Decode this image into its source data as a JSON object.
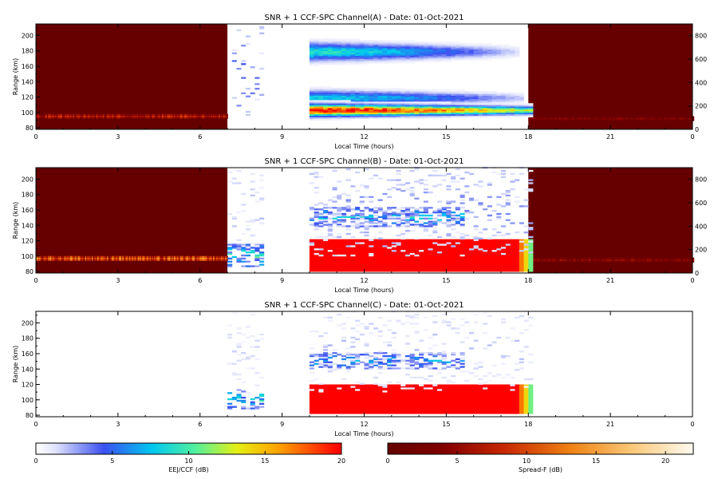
{
  "chart_data": [
    {
      "type": "heatmap",
      "title": "SNR + 1 CCF-SPC Channel(A) - Date: 01-Oct-2021",
      "xlabel": "Local Time (hours)",
      "ylabel": "Range (km)",
      "xlim": [
        0,
        24
      ],
      "ylim": [
        78,
        215
      ],
      "y2lim": [
        0,
        900
      ],
      "xticks": [
        "0",
        "3",
        "6",
        "9",
        "12",
        "15",
        "18",
        "21",
        "0"
      ],
      "yticks": [
        "80",
        "100",
        "120",
        "140",
        "160",
        "180",
        "200"
      ],
      "y2ticks": [
        "0",
        "200",
        "400",
        "600",
        "800"
      ],
      "night_panels": true,
      "night_features": [
        {
          "range_km": 95,
          "from_h": 0,
          "to_h": 7,
          "level_db": 8
        },
        {
          "range_km": 92,
          "from_h": 18,
          "to_h": 24,
          "level_db": 4
        }
      ],
      "features": [
        {
          "kind": "blob",
          "t0": 10,
          "t1": 17.5,
          "center_km": 178,
          "halfwidth_km": 12,
          "peak_db": 9,
          "tail_drop": 0.85
        },
        {
          "kind": "blob",
          "t0": 10,
          "t1": 17.8,
          "center_km": 118,
          "halfwidth_km": 10,
          "peak_db": 8,
          "tail_drop": 0.8
        },
        {
          "kind": "band",
          "t0": 10,
          "t1": 18,
          "center_km": 102,
          "halfwidth_km": 8,
          "peak_db": 20,
          "tail_drop": 0.4
        },
        {
          "kind": "speckle",
          "t0": 7,
          "t1": 8.2,
          "center_km": 150,
          "halfwidth_km": 60,
          "peak_db": 4,
          "density": 0.06
        }
      ]
    },
    {
      "type": "heatmap",
      "title": "SNR + 1 CCF-SPC Channel(B) - Date: 01-Oct-2021",
      "xlabel": "Local Time (hours)",
      "ylabel": "Range (km)",
      "xlim": [
        0,
        24
      ],
      "ylim": [
        78,
        215
      ],
      "y2lim": [
        0,
        900
      ],
      "xticks": [
        "0",
        "3",
        "6",
        "9",
        "12",
        "15",
        "18",
        "21",
        "0"
      ],
      "yticks": [
        "80",
        "100",
        "120",
        "140",
        "160",
        "180",
        "200"
      ],
      "y2ticks": [
        "0",
        "200",
        "400",
        "600",
        "800"
      ],
      "night_panels": true,
      "night_features": [
        {
          "range_km": 97,
          "from_h": 0,
          "to_h": 7,
          "level_db": 12
        },
        {
          "range_km": 95,
          "from_h": 18,
          "to_h": 24,
          "level_db": 5
        }
      ],
      "features": [
        {
          "kind": "solid",
          "t0": 10,
          "t1": 18,
          "from_km": 80,
          "to_km": 120,
          "level_db": 20
        },
        {
          "kind": "speckle",
          "t0": 10,
          "t1": 15.5,
          "center_km": 150,
          "halfwidth_km": 12,
          "peak_db": 8,
          "density": 0.5
        },
        {
          "kind": "speckle",
          "t0": 10,
          "t1": 18,
          "center_km": 160,
          "halfwidth_km": 60,
          "peak_db": 3,
          "density": 0.12
        },
        {
          "kind": "speckle",
          "t0": 7,
          "t1": 8.3,
          "center_km": 100,
          "halfwidth_km": 14,
          "peak_db": 10,
          "density": 0.5
        },
        {
          "kind": "speckle",
          "t0": 7,
          "t1": 8.3,
          "center_km": 160,
          "halfwidth_km": 55,
          "peak_db": 2,
          "density": 0.08
        }
      ]
    },
    {
      "type": "heatmap",
      "title": "SNR + 1 CCF-SPC Channel(C) - Date: 01-Oct-2021",
      "xlabel": "Local Time (hours)",
      "ylabel": "Range (km)",
      "xlim": [
        0,
        24
      ],
      "ylim": [
        78,
        215
      ],
      "xticks": [
        "0",
        "3",
        "6",
        "9",
        "12",
        "15",
        "18",
        "21",
        "0"
      ],
      "yticks": [
        "80",
        "100",
        "120",
        "140",
        "160",
        "180",
        "200"
      ],
      "night_panels": false,
      "features": [
        {
          "kind": "solid",
          "t0": 10,
          "t1": 18,
          "from_km": 82,
          "to_km": 119,
          "level_db": 20
        },
        {
          "kind": "speckle",
          "t0": 10,
          "t1": 15.5,
          "center_km": 150,
          "halfwidth_km": 10,
          "peak_db": 7,
          "density": 0.45
        },
        {
          "kind": "speckle",
          "t0": 10,
          "t1": 18,
          "center_km": 165,
          "halfwidth_km": 55,
          "peak_db": 2,
          "density": 0.1
        },
        {
          "kind": "speckle",
          "t0": 7,
          "t1": 8.3,
          "center_km": 100,
          "halfwidth_km": 12,
          "peak_db": 9,
          "density": 0.4
        },
        {
          "kind": "speckle",
          "t0": 7,
          "t1": 8.3,
          "center_km": 160,
          "halfwidth_km": 55,
          "peak_db": 1.5,
          "density": 0.08
        }
      ]
    }
  ],
  "colorbars": [
    {
      "label": "EEJ/CCF (dB)",
      "range": [
        0,
        20
      ],
      "ticks": [
        "0",
        "5",
        "10",
        "15",
        "20"
      ],
      "colormap": "jet-from-white"
    },
    {
      "label": "Spread-F (dB)",
      "range": [
        0,
        22
      ],
      "ticks": [
        "0",
        "5",
        "10",
        "15",
        "20"
      ],
      "colormap": "dark-red-to-white"
    }
  ]
}
